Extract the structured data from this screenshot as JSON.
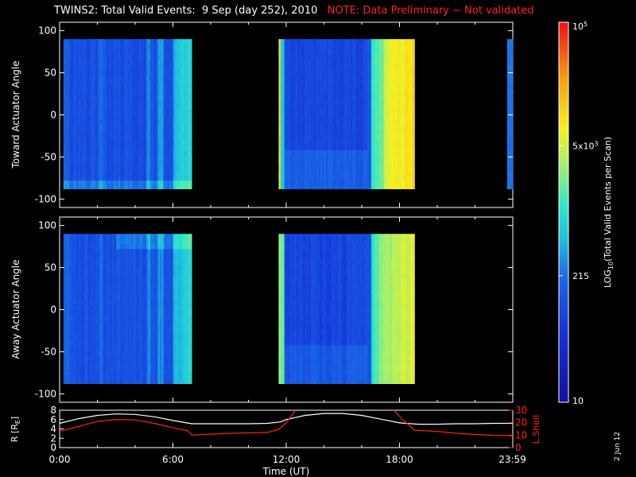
{
  "header": {
    "title": "TWINS2: Total Valid Events:  9 Sep (day 252), 2010",
    "note": "NOTE: Data Preliminary − Not validated",
    "note_color": "#ff2020"
  },
  "stamp": "2 Jun 12",
  "chart_data": [
    {
      "type": "heatmap",
      "panel": "toward",
      "ylabel": "Toward Actuator Angle",
      "ylim": [
        -110,
        110
      ],
      "yticks": [
        100,
        50,
        0,
        -50,
        -100
      ],
      "xlim_hours": [
        0,
        24
      ],
      "data_angle_range": [
        -88,
        90
      ],
      "data_segments_hours": [
        [
          0.2,
          7.0
        ],
        [
          11.6,
          18.8
        ],
        [
          23.7,
          24.0
        ]
      ],
      "colorscale": "log",
      "approx_column_levels": [
        {
          "from_h": 0.2,
          "to_h": 1.5,
          "level": "blue (~100-200)"
        },
        {
          "from_h": 1.5,
          "to_h": 4.5,
          "level": "blue (~100)"
        },
        {
          "from_h": 4.5,
          "to_h": 7.0,
          "level": "blue-cyan (~200-600)"
        },
        {
          "from_h": 11.6,
          "to_h": 11.75,
          "level": "orange (~10000)"
        },
        {
          "from_h": 11.75,
          "to_h": 16.3,
          "level": "blue (~100)"
        },
        {
          "from_h": 16.3,
          "to_h": 17.2,
          "level": "cyan-green (~1000)"
        },
        {
          "from_h": 17.2,
          "to_h": 18.8,
          "level": "yellow-orange (~5000-10000)"
        }
      ]
    },
    {
      "type": "heatmap",
      "panel": "away",
      "ylabel": "Away Actuator Angle",
      "ylim": [
        -110,
        110
      ],
      "yticks": [
        100,
        50,
        0,
        -50,
        -100
      ],
      "xlim_hours": [
        0,
        24
      ],
      "data_angle_range": [
        -88,
        90
      ],
      "data_segments_hours": [
        [
          0.2,
          7.0
        ],
        [
          11.6,
          18.8
        ]
      ],
      "colorscale": "log",
      "approx_column_levels": [
        {
          "from_h": 0.2,
          "to_h": 4.5,
          "level": "blue (~100)"
        },
        {
          "from_h": 4.5,
          "to_h": 7.0,
          "level": "blue-cyan (~200)"
        },
        {
          "from_h": 11.6,
          "to_h": 11.9,
          "level": "yellow-green (~3000)"
        },
        {
          "from_h": 11.9,
          "to_h": 16.3,
          "level": "blue (~100)"
        },
        {
          "from_h": 16.3,
          "to_h": 18.8,
          "level": "cyan-yellow (~1000-5000)"
        }
      ]
    },
    {
      "type": "line",
      "panel": "orbit",
      "xlabel": "Time (UT)",
      "xticks_hours": [
        0,
        6,
        12,
        18,
        23.98
      ],
      "xtick_labels": [
        "0:00",
        "6:00",
        "12:00",
        "18:00",
        "23:59"
      ],
      "ylabel_left": "R [R",
      "ylabel_left_sub": "E",
      "ylabel_left_close": "]",
      "ylim_left": [
        0,
        8
      ],
      "yticks_left": [
        8,
        6,
        4,
        2,
        0
      ],
      "ylabel_right": "L Shell",
      "ylim_right": [
        0,
        30
      ],
      "yticks_right": [
        30,
        20,
        10,
        0
      ],
      "series": [
        {
          "axis": "left",
          "color": "#ffffff",
          "x": [
            0,
            1,
            2,
            3,
            4,
            5,
            6,
            7,
            8,
            9,
            10,
            11,
            11.7,
            12,
            13,
            14,
            15,
            16,
            17,
            18,
            19,
            20,
            21,
            22,
            23,
            24
          ],
          "y": [
            5.2,
            6.2,
            6.9,
            7.2,
            7.1,
            6.6,
            5.8,
            5.1,
            5.1,
            5.1,
            5.1,
            5.2,
            5.5,
            6.0,
            6.9,
            7.3,
            7.3,
            6.9,
            6.1,
            5.3,
            5.0,
            5.0,
            5.1,
            5.1,
            5.2,
            5.2
          ]
        },
        {
          "axis": "right",
          "color": "#ff2020",
          "x": [
            0,
            1,
            2,
            3,
            4,
            5,
            6,
            6.8,
            7.0,
            8,
            9,
            10,
            11,
            11.6,
            12,
            12.5
          ],
          "y": [
            13.0,
            17.0,
            21.0,
            22.6,
            22.2,
            19.5,
            16.0,
            13.5,
            10.0,
            10.8,
            11.4,
            11.8,
            12.2,
            14.5,
            20.0,
            30.0
          ]
        },
        {
          "axis": "right",
          "color": "#ff2020",
          "x": [
            17.7,
            18.2,
            18.8,
            20,
            21,
            22,
            23,
            24
          ],
          "y": [
            30.0,
            22.0,
            14.0,
            13.0,
            11.5,
            10.5,
            9.8,
            9.5
          ]
        }
      ]
    }
  ],
  "colorbar": {
    "scale": "log",
    "range": [
      10,
      100000
    ],
    "tick_labels": [
      {
        "value": 100000,
        "base": "10",
        "exp": "5"
      },
      {
        "value": 5000,
        "base": "5x10",
        "exp": "3"
      },
      {
        "value": 215,
        "base": "215",
        "exp": ""
      },
      {
        "value": 10,
        "base": "10",
        "exp": ""
      }
    ],
    "label_prefix": "LOG",
    "label_sub": "10",
    "label_suffix": "(Total Valid Events per Scan)"
  }
}
